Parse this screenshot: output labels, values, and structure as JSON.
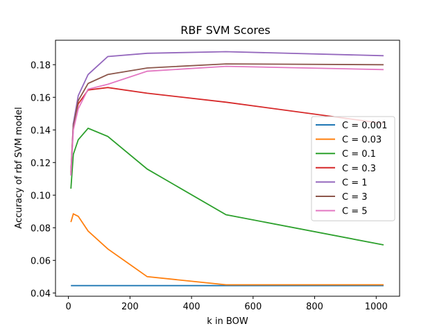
{
  "chart_data": {
    "type": "line",
    "title": "RBF SVM Scores",
    "xlabel": "k in BOW",
    "ylabel": "Accuracy of rbf SVM model",
    "xlim": [
      -42,
      1076
    ],
    "ylim": [
      0.038,
      0.195
    ],
    "xticks": [
      0,
      200,
      400,
      600,
      800,
      1000
    ],
    "yticks": [
      0.04,
      0.06,
      0.08,
      0.1,
      0.12,
      0.14,
      0.16,
      0.18
    ],
    "xtick_labels": [
      "0",
      "200",
      "400",
      "600",
      "800",
      "1000"
    ],
    "ytick_labels": [
      "0.04",
      "0.06",
      "0.08",
      "0.10",
      "0.12",
      "0.14",
      "0.16",
      "0.18"
    ],
    "grid": false,
    "legend_position": "center-right",
    "x": [
      8,
      16,
      32,
      64,
      128,
      256,
      512,
      1024
    ],
    "series": [
      {
        "name": "C = 0.001",
        "color": "#1f77b4",
        "values": [
          0.0445,
          0.0445,
          0.0445,
          0.0445,
          0.0445,
          0.0445,
          0.0445,
          0.0445
        ]
      },
      {
        "name": "C = 0.03",
        "color": "#ff7f0e",
        "values": [
          0.0835,
          0.0885,
          0.087,
          0.078,
          0.067,
          0.05,
          0.045,
          0.045
        ]
      },
      {
        "name": "C = 0.1",
        "color": "#2ca02c",
        "values": [
          0.104,
          0.125,
          0.134,
          0.141,
          0.136,
          0.116,
          0.088,
          0.0695
        ]
      },
      {
        "name": "C = 0.3",
        "color": "#d62728",
        "values": [
          0.114,
          0.144,
          0.156,
          0.1645,
          0.166,
          0.1625,
          0.157,
          0.144
        ]
      },
      {
        "name": "C = 1",
        "color": "#9467bd",
        "values": [
          0.112,
          0.144,
          0.161,
          0.174,
          0.185,
          0.187,
          0.188,
          0.1855
        ]
      },
      {
        "name": "C = 3",
        "color": "#8c564b",
        "values": [
          0.113,
          0.142,
          0.158,
          0.1685,
          0.174,
          0.178,
          0.1805,
          0.18
        ]
      },
      {
        "name": "C = 5",
        "color": "#e377c2",
        "values": [
          0.112,
          0.14,
          0.153,
          0.165,
          0.168,
          0.176,
          0.179,
          0.177
        ]
      }
    ]
  }
}
